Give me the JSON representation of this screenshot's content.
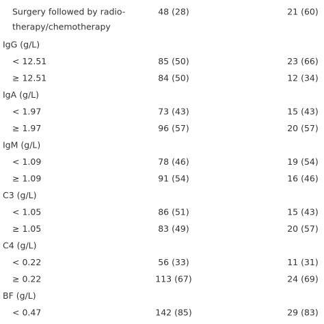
{
  "table": {
    "rows": [
      {
        "label": [
          "Surgery followed by radio-",
          "therapy/chemotherapy"
        ],
        "cells": [
          "48 (28)",
          "21 (60)"
        ],
        "sub": true
      },
      {
        "label": [
          "IgG (g/L)"
        ]
      },
      {
        "label": [
          "< 12.51"
        ],
        "cells": [
          "85 (50)",
          "23 (66)"
        ],
        "sub": true
      },
      {
        "label": [
          "≥ 12.51"
        ],
        "cells": [
          "84 (50)",
          "12 (34)"
        ],
        "sub": true
      },
      {
        "label": [
          "IgA (g/L)"
        ]
      },
      {
        "label": [
          "< 1.97"
        ],
        "cells": [
          "73 (43)",
          "15 (43)"
        ],
        "sub": true
      },
      {
        "label": [
          "≥ 1.97"
        ],
        "cells": [
          "96 (57)",
          "20 (57)"
        ],
        "sub": true
      },
      {
        "label": [
          "IgM (g/L)"
        ]
      },
      {
        "label": [
          "< 1.09"
        ],
        "cells": [
          "78 (46)",
          "19 (54)"
        ],
        "sub": true
      },
      {
        "label": [
          "≥ 1.09"
        ],
        "cells": [
          "91 (54)",
          "16 (46)"
        ],
        "sub": true
      },
      {
        "label": [
          "C3 (g/L)"
        ]
      },
      {
        "label": [
          "< 1.05"
        ],
        "cells": [
          "86 (51)",
          "15 (43)"
        ],
        "sub": true
      },
      {
        "label": [
          "≥ 1.05"
        ],
        "cells": [
          "83 (49)",
          "20 (57)"
        ],
        "sub": true
      },
      {
        "label": [
          "C4 (g/L)"
        ]
      },
      {
        "label": [
          "< 0.22"
        ],
        "cells": [
          "56 (33)",
          "11 (31)"
        ],
        "sub": true
      },
      {
        "label": [
          "≥ 0.22"
        ],
        "cells": [
          "113 (67)",
          "24 (69)"
        ],
        "sub": true
      },
      {
        "label": [
          "BF (g/L)"
        ]
      },
      {
        "label": [
          "< 0.47"
        ],
        "cells": [
          "142 (85)",
          "29 (83)"
        ],
        "sub": true
      }
    ]
  }
}
